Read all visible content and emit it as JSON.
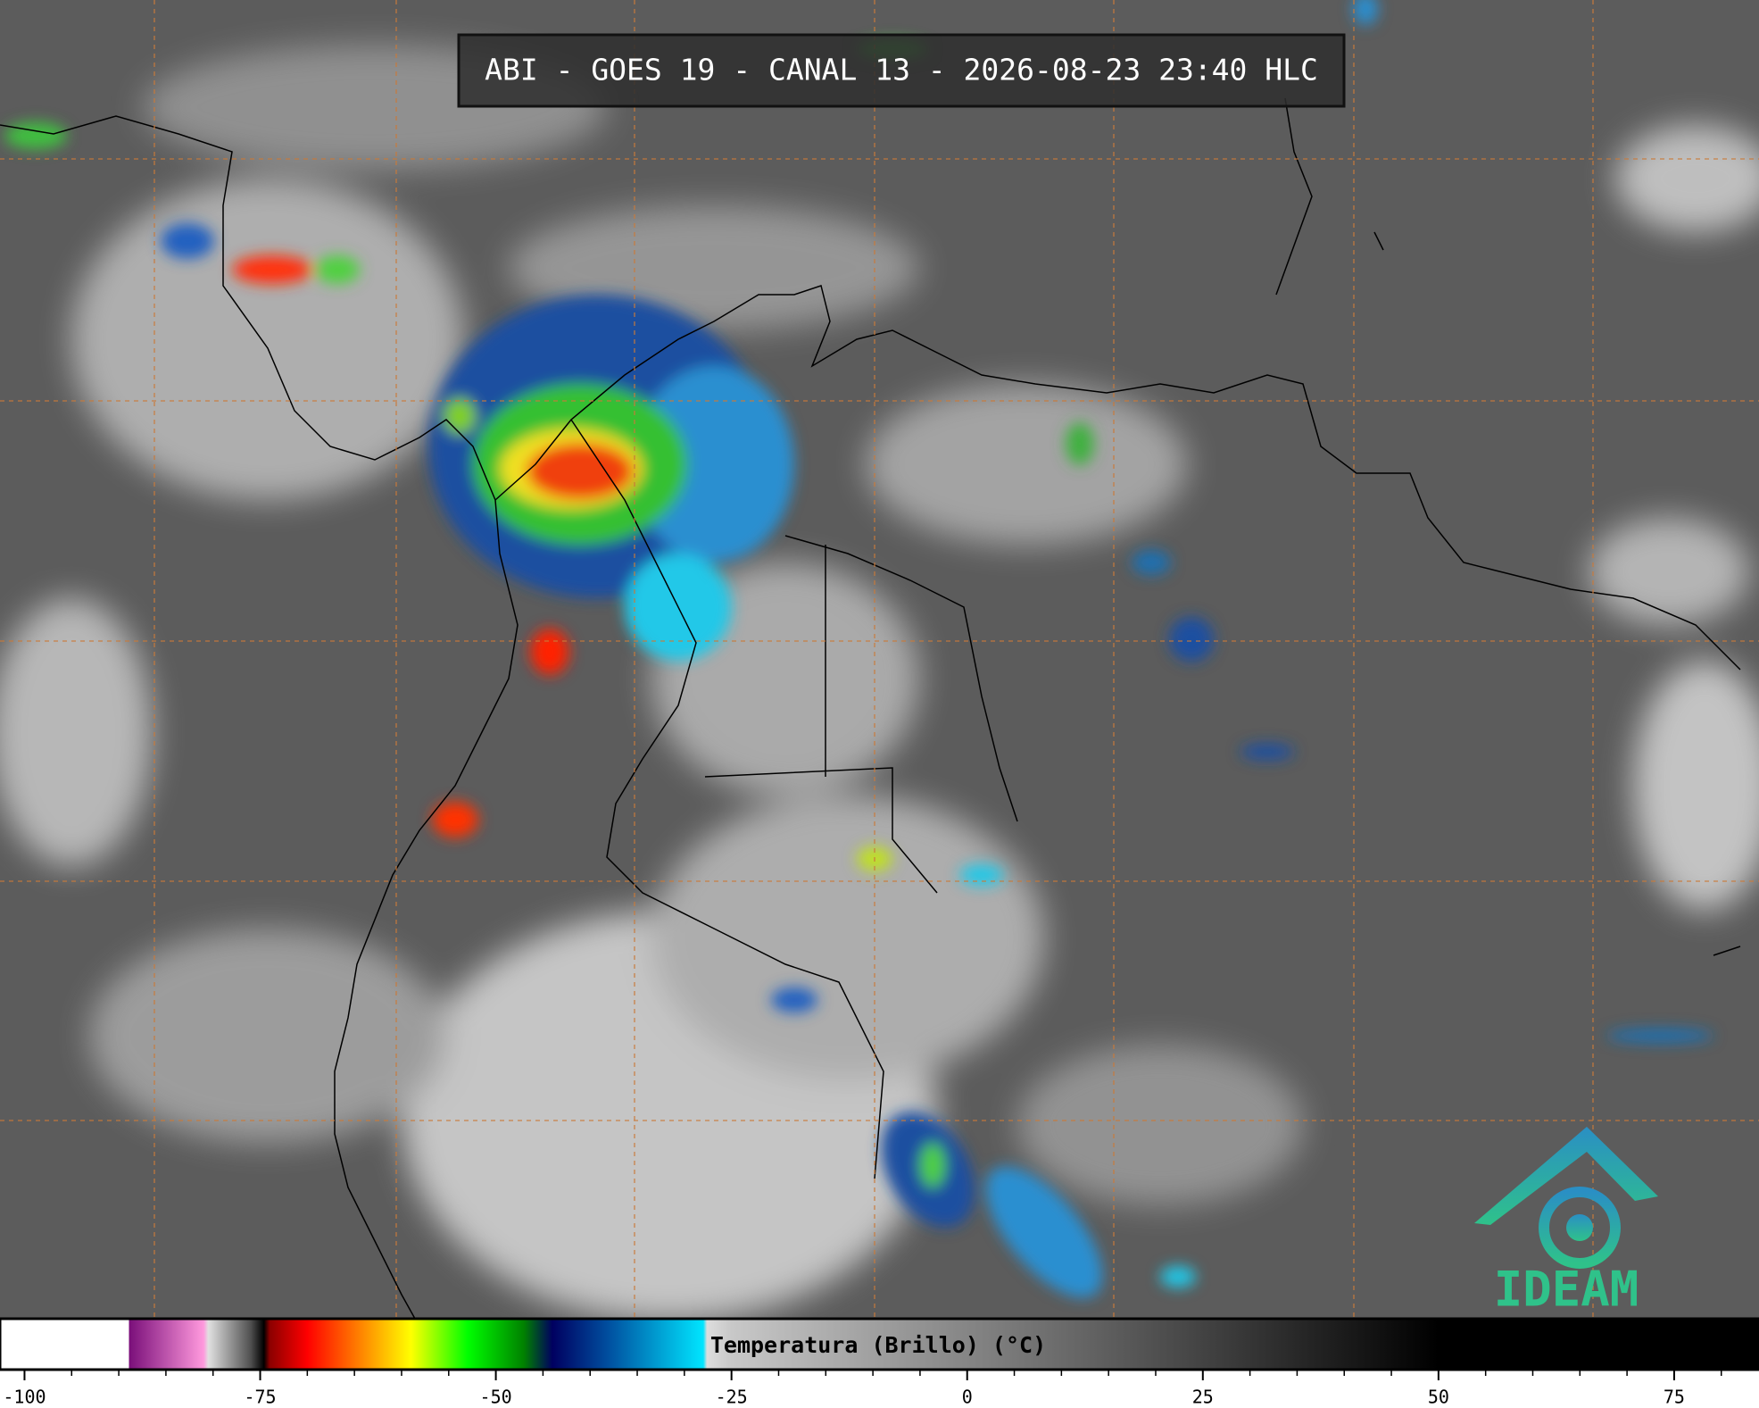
{
  "header": {
    "title": "ABI - GOES 19 - CANAL 13 - 2026-08-23 23:40 HLC"
  },
  "colorbar": {
    "label": "Temperatura (Brillo) (°C)",
    "xlim": [
      -102.6,
      84
    ],
    "ticks": [
      -100,
      -75,
      -50,
      -25,
      0,
      25,
      50,
      75
    ],
    "minor_ticks": [
      -95,
      -90,
      -85,
      -80,
      -70,
      -65,
      -60,
      -55,
      -45,
      -40,
      -35,
      -30,
      -20,
      -15,
      -10,
      -5,
      5,
      10,
      15,
      20,
      30,
      35,
      40,
      45,
      55,
      60,
      65,
      70,
      80
    ],
    "stops": [
      {
        "value": -102.6,
        "color": "#ffffff"
      },
      {
        "value": -88.9,
        "color": "#ffffff"
      },
      {
        "value": -88.9,
        "color": "#7a0f7a"
      },
      {
        "value": -81,
        "color": "#ff99dd"
      },
      {
        "value": -80.5,
        "color": "#e0e0e0"
      },
      {
        "value": -76,
        "color": "#505050"
      },
      {
        "value": -74.6,
        "color": "#000000"
      },
      {
        "value": -74,
        "color": "#8b0000"
      },
      {
        "value": -70,
        "color": "#ff0000"
      },
      {
        "value": -64,
        "color": "#ff8c00"
      },
      {
        "value": -59,
        "color": "#ffff00"
      },
      {
        "value": -53,
        "color": "#00ff00"
      },
      {
        "value": -47,
        "color": "#008000"
      },
      {
        "value": -44,
        "color": "#000060"
      },
      {
        "value": -38,
        "color": "#0050a0"
      },
      {
        "value": -28,
        "color": "#00e5ff"
      },
      {
        "value": -27.6,
        "color": "#dddddd"
      },
      {
        "value": -25,
        "color": "#c8c8c8"
      },
      {
        "value": 50,
        "color": "#000000"
      },
      {
        "value": 84,
        "color": "#000000"
      }
    ]
  },
  "logo": {
    "text": "IDEAM"
  }
}
